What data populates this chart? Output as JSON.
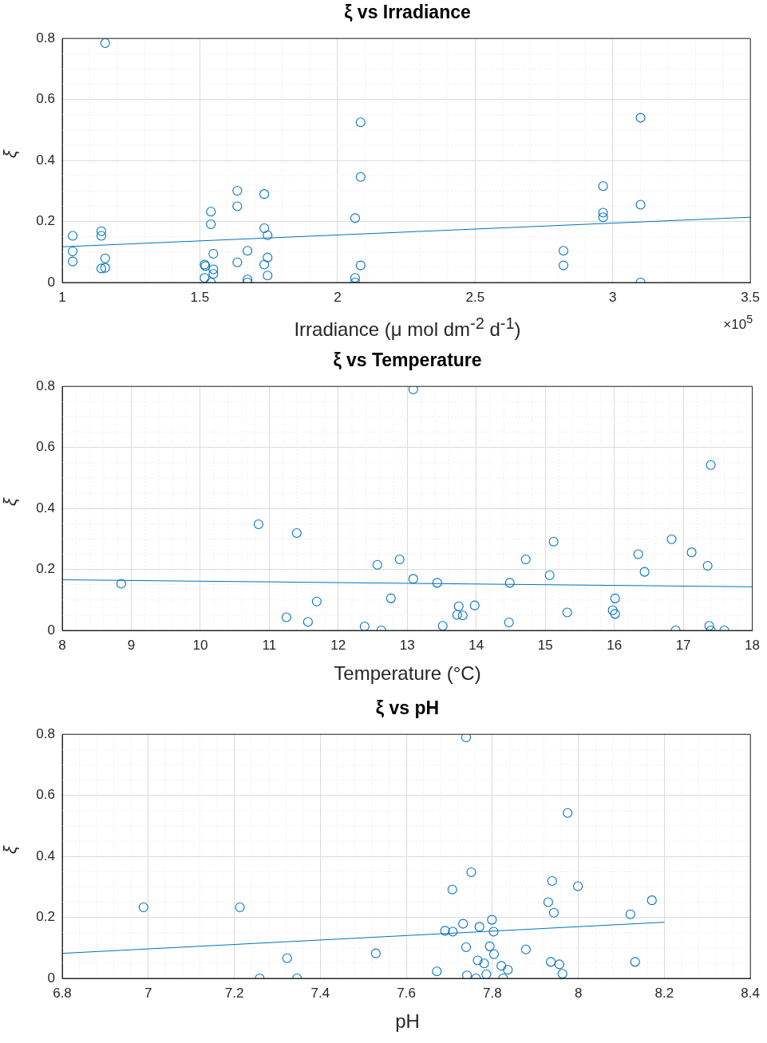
{
  "chart_data": [
    {
      "type": "scatter",
      "title": "ξ vs Irradiance",
      "xlabel": "Irradiance (μ mol dm$^{-2}$ d$^{-1}$)",
      "ylabel": "ξ",
      "annotations": [
        "×10$^{5}$"
      ],
      "xlim": [
        1,
        3.5
      ],
      "xticks": [
        1,
        1.5,
        2,
        2.5,
        3,
        3.5
      ],
      "ylim": [
        0,
        0.8
      ],
      "yticks": [
        0,
        0.2,
        0.4,
        0.6,
        0.8
      ],
      "grid": true,
      "series": [
        {
          "marker": "circle",
          "color": "#0072bd",
          "x": [
            1.038,
            1.038,
            1.038,
            1.142,
            1.142,
            1.142,
            1.156,
            1.156,
            1.156,
            1.517,
            1.52,
            1.517,
            1.54,
            1.54,
            1.54,
            1.549,
            1.549,
            1.549,
            1.636,
            1.636,
            1.636,
            1.673,
            1.673,
            1.673,
            1.734,
            1.734,
            1.734,
            1.746,
            1.746,
            1.746,
            2.064,
            2.064,
            2.064,
            2.084,
            2.084,
            2.084,
            2.821,
            2.821,
            2.965,
            2.965,
            2.965,
            3.101,
            3.101,
            3.101
          ],
          "values": [
            0.153,
            0.102,
            0.069,
            0.168,
            0.153,
            0.046,
            0.785,
            0.079,
            0.048,
            0.059,
            0.054,
            0.015,
            0.232,
            0.191,
            0,
            0.094,
            0.043,
            0.028,
            0.301,
            0.25,
            0.066,
            0.104,
            0.01,
            0,
            0.29,
            0.178,
            0.059,
            0.155,
            0.082,
            0.023,
            0.211,
            0.015,
            0,
            0.525,
            0.346,
            0.056,
            0.104,
            0.056,
            0.316,
            0.229,
            0.214,
            0.54,
            0.255,
            0
          ]
        },
        {
          "type": "line",
          "marker": "none",
          "color": "#0072bd",
          "x": [
            1,
            3.5
          ],
          "values": [
            0.117,
            0.214
          ]
        }
      ]
    },
    {
      "type": "scatter",
      "title": "ξ vs Temperature",
      "xlabel": "Temperature (°C)",
      "ylabel": "ξ",
      "xlim": [
        8,
        18
      ],
      "xticks": [
        8,
        9,
        10,
        11,
        12,
        13,
        14,
        15,
        16,
        17,
        18
      ],
      "ylim": [
        0,
        0.8
      ],
      "yticks": [
        0,
        0.2,
        0.4,
        0.6,
        0.8
      ],
      "grid": true,
      "series": [
        {
          "marker": "circle",
          "color": "#0072bd",
          "x": [
            8.855,
            10.844,
            11.249,
            11.399,
            11.561,
            11.688,
            12.382,
            12.566,
            12.624,
            12.763,
            12.89,
            13.087,
            13.087,
            13.434,
            13.514,
            13.723,
            13.746,
            13.803,
            13.977,
            14.474,
            14.486,
            14.717,
            15.064,
            15.121,
            15.318,
            15.977,
            16.012,
            16.012,
            16.347,
            16.439,
            16.832,
            16.89,
            17.121,
            17.353,
            17.376,
            17.399,
            17.399,
            17.595
          ],
          "values": [
            0.153,
            0.348,
            0.043,
            0.319,
            0.028,
            0.095,
            0.013,
            0.215,
            0,
            0.105,
            0.233,
            0.169,
            0.79,
            0.156,
            0.015,
            0.051,
            0.079,
            0.049,
            0.082,
            0.026,
            0.156,
            0.233,
            0.181,
            0.291,
            0.059,
            0.066,
            0.105,
            0.054,
            0.25,
            0.192,
            0.299,
            0,
            0.256,
            0.212,
            0.015,
            0.542,
            0,
            0
          ]
        },
        {
          "type": "line",
          "marker": "none",
          "color": "#0072bd",
          "x": [
            8,
            18
          ],
          "values": [
            0.166,
            0.143
          ]
        }
      ]
    },
    {
      "type": "scatter",
      "title": "ξ vs pH",
      "xlabel": "pH",
      "ylabel": "ξ",
      "xlim": [
        6.8,
        8.4
      ],
      "xticks": [
        6.8,
        7,
        7.2,
        7.4,
        7.6,
        7.8,
        8,
        8.2,
        8.4
      ],
      "ylim": [
        0,
        0.8
      ],
      "yticks": [
        0,
        0.2,
        0.4,
        0.6,
        0.8
      ],
      "grid": true,
      "series": [
        {
          "marker": "circle",
          "color": "#0072bd",
          "x": [
            6.989,
            7.213,
            7.259,
            7.323,
            7.346,
            7.529,
            7.671,
            7.69,
            7.707,
            7.708,
            7.732,
            7.739,
            7.739,
            7.741,
            7.751,
            7.762,
            7.766,
            7.77,
            7.781,
            7.786,
            7.794,
            7.799,
            7.803,
            7.804,
            7.821,
            7.825,
            7.836,
            7.878,
            7.93,
            7.936,
            7.939,
            7.943,
            7.956,
            7.963,
            7.975,
            7.999,
            8.121,
            8.132,
            8.171
          ],
          "values": [
            0.233,
            0.233,
            0,
            0.066,
            0,
            0.082,
            0.023,
            0.156,
            0.291,
            0.153,
            0.179,
            0.79,
            0.102,
            0.01,
            0.348,
            0,
            0.059,
            0.169,
            0.049,
            0.013,
            0.105,
            0.192,
            0.153,
            0.079,
            0.041,
            0,
            0.028,
            0.095,
            0.25,
            0.054,
            0.319,
            0.215,
            0.046,
            0.015,
            0.542,
            0.302,
            0.21,
            0.054,
            0.256
          ]
        },
        {
          "type": "line",
          "marker": "none",
          "color": "#0072bd",
          "x": [
            6.8,
            8.2
          ],
          "values": [
            0.082,
            0.184
          ]
        }
      ]
    }
  ]
}
